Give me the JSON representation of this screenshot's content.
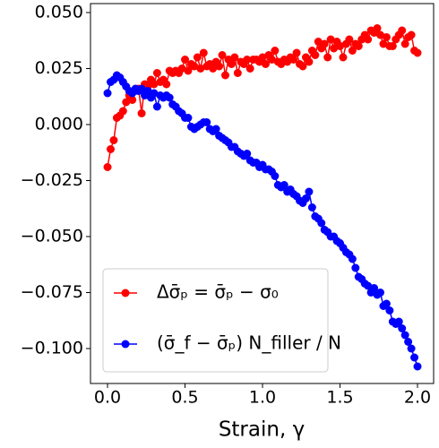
{
  "chart_data": {
    "type": "line",
    "x_label": "Strain, γ",
    "x": [
      0,
      0.02,
      0.04,
      0.06,
      0.08,
      0.1,
      0.12,
      0.14,
      0.16,
      0.18,
      0.2,
      0.22,
      0.24,
      0.26,
      0.28,
      0.3,
      0.32,
      0.34,
      0.36,
      0.38,
      0.4,
      0.42,
      0.44,
      0.46,
      0.48,
      0.5,
      0.52,
      0.54,
      0.56,
      0.58,
      0.6,
      0.62,
      0.64,
      0.66,
      0.68,
      0.7,
      0.72,
      0.74,
      0.76,
      0.78,
      0.8,
      0.82,
      0.84,
      0.86,
      0.88,
      0.9,
      0.92,
      0.94,
      0.96,
      0.98,
      1.0,
      1.02,
      1.04,
      1.06,
      1.08,
      1.1,
      1.12,
      1.14,
      1.16,
      1.18,
      1.2,
      1.22,
      1.24,
      1.26,
      1.28,
      1.3,
      1.32,
      1.34,
      1.36,
      1.38,
      1.4,
      1.42,
      1.44,
      1.46,
      1.48,
      1.5,
      1.52,
      1.54,
      1.56,
      1.58,
      1.6,
      1.62,
      1.64,
      1.66,
      1.68,
      1.7,
      1.72,
      1.74,
      1.76,
      1.78,
      1.8,
      1.82,
      1.84,
      1.86,
      1.88,
      1.9,
      1.92,
      1.94,
      1.96,
      1.98,
      2.0
    ],
    "series": [
      {
        "name": "Δσ̄ₚ = σ̄ₚ − σ₀",
        "color": "#ff0000",
        "values": [
          -0.019,
          -0.011,
          -0.007,
          0.003,
          0.004,
          0.006,
          0.01,
          0.013,
          0.011,
          0.015,
          0.016,
          0.005,
          0.018,
          0.017,
          0.02,
          0.018,
          0.023,
          0.019,
          0.02,
          0.018,
          0.024,
          0.023,
          0.024,
          0.023,
          0.025,
          0.029,
          0.024,
          0.027,
          0.026,
          0.03,
          0.025,
          0.032,
          0.026,
          0.027,
          0.025,
          0.028,
          0.026,
          0.031,
          0.022,
          0.029,
          0.027,
          0.03,
          0.023,
          0.028,
          0.027,
          0.029,
          0.025,
          0.029,
          0.029,
          0.028,
          0.03,
          0.027,
          0.031,
          0.029,
          0.033,
          0.028,
          0.027,
          0.029,
          0.028,
          0.03,
          0.029,
          0.032,
          0.027,
          0.026,
          0.03,
          0.028,
          0.033,
          0.031,
          0.037,
          0.034,
          0.036,
          0.03,
          0.038,
          0.034,
          0.037,
          0.035,
          0.03,
          0.036,
          0.038,
          0.033,
          0.036,
          0.035,
          0.038,
          0.04,
          0.038,
          0.042,
          0.041,
          0.043,
          0.04,
          0.036,
          0.039,
          0.035,
          0.035,
          0.038,
          0.04,
          0.042,
          0.036,
          0.039,
          0.04,
          0.033,
          0.032
        ]
      },
      {
        "name": "(σ̄_f − σ̄ₚ) N_filler / N",
        "color": "#0000ff",
        "values": [
          0.014,
          0.019,
          0.02,
          0.022,
          0.021,
          0.019,
          0.017,
          0.015,
          0.014,
          0.016,
          0.015,
          0.016,
          0.013,
          0.015,
          0.012,
          0.014,
          0.008,
          0.013,
          0.012,
          0.013,
          0.012,
          0.009,
          0.008,
          0.006,
          0.005,
          0.003,
          0.003,
          -0.001,
          -0.002,
          -0.001,
          0,
          0.001,
          0.001,
          -0.002,
          -0.003,
          -0.002,
          -0.005,
          -0.006,
          -0.007,
          -0.008,
          -0.01,
          -0.01,
          -0.012,
          -0.013,
          -0.014,
          -0.013,
          -0.016,
          -0.017,
          -0.017,
          -0.019,
          -0.018,
          -0.02,
          -0.02,
          -0.021,
          -0.023,
          -0.027,
          -0.028,
          -0.027,
          -0.03,
          -0.029,
          -0.031,
          -0.032,
          -0.034,
          -0.035,
          -0.033,
          -0.03,
          -0.037,
          -0.041,
          -0.042,
          -0.044,
          -0.047,
          -0.048,
          -0.05,
          -0.05,
          -0.052,
          -0.053,
          -0.055,
          -0.057,
          -0.058,
          -0.06,
          -0.064,
          -0.068,
          -0.069,
          -0.071,
          -0.072,
          -0.075,
          -0.073,
          -0.076,
          -0.075,
          -0.081,
          -0.08,
          -0.083,
          -0.088,
          -0.089,
          -0.088,
          -0.091,
          -0.094,
          -0.097,
          -0.1,
          -0.104,
          -0.108
        ]
      }
    ],
    "xlim": [
      -0.11,
      2.104
    ],
    "ylim": [
      -0.1156,
      0.054
    ],
    "xticks": [
      {
        "value": 0,
        "label": "0.0"
      },
      0.5,
      {
        "value": 1,
        "label": "1.0"
      },
      1.5,
      {
        "value": 2,
        "label": "2.0"
      }
    ],
    "yticks": [
      {
        "value": 0.05,
        "label": "0.050"
      },
      {
        "value": 0.025,
        "label": "0.025"
      },
      {
        "value": 0,
        "label": "0.000"
      },
      {
        "value": -0.025,
        "label": "−0.025"
      },
      {
        "value": -0.05,
        "label": "−0.050"
      },
      {
        "value": -0.075,
        "label": "−0.075"
      },
      {
        "value": -0.1,
        "label": "−0.100"
      }
    ],
    "grid": false,
    "legend": "lower left"
  }
}
